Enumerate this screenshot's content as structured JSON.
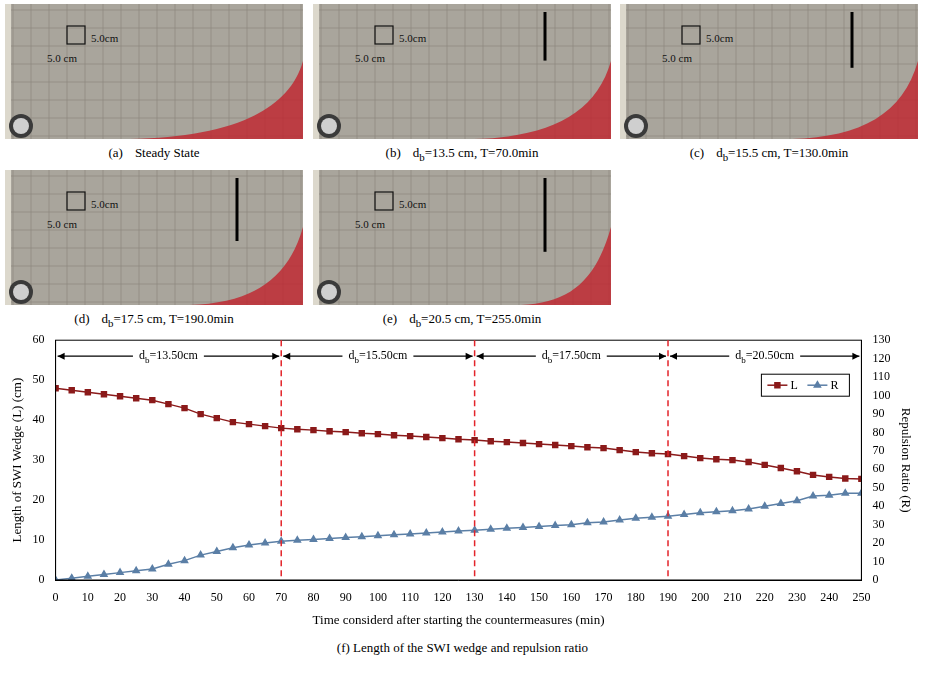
{
  "panels": [
    {
      "label": "(a)",
      "text": "Steady State",
      "wedge_length_cm": 48
    },
    {
      "label": "(b)",
      "symbol": "d",
      "subscript": "b",
      "text": "=13.5 cm, T=70.0min",
      "barrier_depth_cm": 13.5,
      "wedge_length_cm": 38
    },
    {
      "label": "(c)",
      "symbol": "d",
      "subscript": "b",
      "text": "=15.5 cm, T=130.0min",
      "barrier_depth_cm": 15.5,
      "wedge_length_cm": 35
    },
    {
      "label": "(d)",
      "symbol": "d",
      "subscript": "b",
      "text": "=17.5 cm, T=190.0min",
      "barrier_depth_cm": 17.5,
      "wedge_length_cm": 31.5
    },
    {
      "label": "(e)",
      "symbol": "d",
      "subscript": "b",
      "text": "=20.5 cm, T=255.0min",
      "barrier_depth_cm": 20.5,
      "wedge_length_cm": 25
    }
  ],
  "scale_labels": [
    "5.0cm",
    "5.0 cm"
  ],
  "chart_data": {
    "type": "line",
    "caption": "(f) Length of the SWI wedge and repulsion ratio",
    "x_label": "Time considerd after starting the countermeasures (min)",
    "y_label": "Length of SWI Wedge (L) (cm)",
    "y2_label": "Repulsion Ratio (R)",
    "x": [
      0,
      5,
      10,
      15,
      20,
      25,
      30,
      35,
      40,
      45,
      50,
      55,
      60,
      65,
      70,
      75,
      80,
      85,
      90,
      95,
      100,
      105,
      110,
      115,
      120,
      125,
      130,
      135,
      140,
      145,
      150,
      155,
      160,
      165,
      170,
      175,
      180,
      185,
      190,
      195,
      200,
      205,
      210,
      215,
      220,
      225,
      230,
      235,
      240,
      245,
      250
    ],
    "xlim": [
      0,
      250
    ],
    "xticks": [
      0,
      10,
      20,
      30,
      40,
      50,
      60,
      70,
      80,
      90,
      100,
      110,
      120,
      130,
      140,
      150,
      160,
      170,
      180,
      190,
      200,
      210,
      220,
      230,
      240,
      250
    ],
    "ylim": [
      0,
      60
    ],
    "yticks": [
      0,
      10,
      20,
      30,
      40,
      50,
      60
    ],
    "y2lim": [
      0,
      130
    ],
    "y2ticks": [
      0,
      10,
      20,
      30,
      40,
      50,
      60,
      70,
      80,
      90,
      100,
      110,
      120,
      130
    ],
    "grid": false,
    "legend": "upper right",
    "series": [
      {
        "name": "L",
        "color": "#8b1a1a",
        "marker": "square",
        "values": [
          48,
          47.5,
          47,
          46.5,
          46,
          45.5,
          45,
          44,
          43,
          41.5,
          40.5,
          39.5,
          39,
          38.5,
          38,
          37.7,
          37.5,
          37.2,
          37,
          36.7,
          36.5,
          36.2,
          36,
          35.8,
          35.5,
          35.2,
          35,
          34.7,
          34.5,
          34.3,
          34,
          33.8,
          33.5,
          33.2,
          33,
          32.5,
          32,
          31.7,
          31.5,
          31,
          30.5,
          30.2,
          30,
          29.5,
          28.8,
          28,
          27.2,
          26.3,
          25.8,
          25.4,
          25.3
        ]
      },
      {
        "name": "R",
        "color": "#5b7fa6",
        "marker": "triangle",
        "axis": "y2",
        "values": [
          0,
          1,
          2,
          3,
          4,
          5,
          6,
          8.5,
          10.5,
          13.5,
          15.5,
          17.5,
          19,
          20,
          21,
          21.5,
          22,
          22.5,
          23,
          23.5,
          24,
          24.5,
          25,
          25.5,
          26,
          26.5,
          27,
          27.5,
          28,
          28.5,
          29,
          29.5,
          30,
          31,
          31.5,
          32.5,
          33.5,
          34,
          34.5,
          35.5,
          36.5,
          37,
          37.5,
          38.5,
          40,
          41.5,
          43,
          45.5,
          46,
          47,
          47
        ]
      }
    ],
    "phase_lines": {
      "x": [
        70,
        130,
        190
      ],
      "color": "#e3242b",
      "line_style": "dashed"
    },
    "phases": [
      {
        "x_from": 0,
        "x_to": 70,
        "symbol": "d",
        "subscript": "b",
        "text": "=13.50cm"
      },
      {
        "x_from": 70,
        "x_to": 130,
        "symbol": "d",
        "subscript": "b",
        "text": "=15.50cm"
      },
      {
        "x_from": 130,
        "x_to": 190,
        "symbol": "d",
        "subscript": "b",
        "text": "=17.50cm"
      },
      {
        "x_from": 190,
        "x_to": 250,
        "symbol": "d",
        "subscript": "b",
        "text": "=20.50cm"
      }
    ]
  }
}
